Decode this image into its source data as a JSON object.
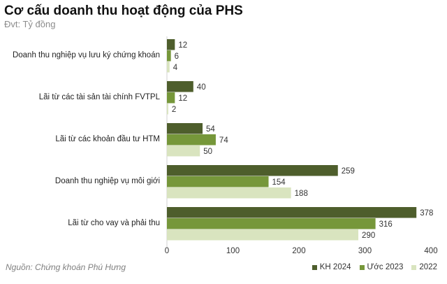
{
  "header": {
    "title": "Cơ cấu doanh thu hoạt động của PHS",
    "subtitle": "Đvt: Tỷ đồng"
  },
  "footer": {
    "source": "Nguồn: Chứng khoán Phú Hưng"
  },
  "colors": {
    "kh2024": "#4e5e2c",
    "uoc2023": "#76973a",
    "y2022": "#d9e4bf"
  },
  "chart_data": {
    "type": "bar",
    "orientation": "horizontal",
    "categories": [
      "Doanh thu nghiệp vụ lưu ký chứng khoán",
      "Lãi từ các tài sản tài chính FVTPL",
      "Lãi từ các khoản đầu tư HTM",
      "Doanh thu nghiệp vụ môi giới",
      "Lãi từ cho vay và phải thu"
    ],
    "series": [
      {
        "name": "KH 2024",
        "values": [
          12,
          40,
          54,
          259,
          378
        ]
      },
      {
        "name": "Ước 2023",
        "values": [
          6,
          12,
          74,
          154,
          316
        ]
      },
      {
        "name": "2022",
        "values": [
          4,
          2,
          50,
          188,
          290
        ]
      }
    ],
    "xlim": [
      0,
      400
    ],
    "xticks": [
      0,
      100,
      200,
      300,
      400
    ],
    "legend_position": "bottom-right",
    "grid": false
  }
}
